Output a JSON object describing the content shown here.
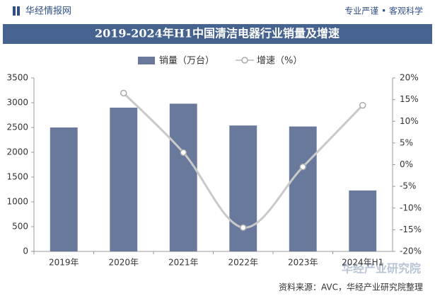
{
  "header": {
    "brand": "华经情报网",
    "slogan": "专业严谨 • 客观科学"
  },
  "chart_data": {
    "type": "bar",
    "title": "2019-2024年H1中国清洁电器行业销量及增速",
    "categories": [
      "2019年",
      "2020年",
      "2021年",
      "2022年",
      "2023年",
      "2024年H1"
    ],
    "series": [
      {
        "name": "销量（万台）",
        "type": "bar",
        "color": "#68799b",
        "values": [
          2500,
          2900,
          2980,
          2540,
          2520,
          1230
        ]
      },
      {
        "name": "增速（%）",
        "type": "line",
        "axis": "y2",
        "color": "#c9c9c9",
        "values": [
          null,
          16.5,
          2.8,
          -14.5,
          -0.5,
          13.7
        ]
      }
    ],
    "ylim": [
      0,
      3500
    ],
    "yticks": [
      0,
      500,
      1000,
      1500,
      2000,
      2500,
      3000,
      3500
    ],
    "y2lim": [
      -20,
      20
    ],
    "y2ticks": [
      {
        "value": -20,
        "label": "-20%"
      },
      {
        "value": -15,
        "label": "-15%"
      },
      {
        "value": -10,
        "label": "-10%"
      },
      {
        "value": -5,
        "label": "-5%"
      },
      {
        "value": 0,
        "label": "0%"
      },
      {
        "value": 5,
        "label": "5%"
      },
      {
        "value": 10,
        "label": "10%"
      },
      {
        "value": 15,
        "label": "15%"
      },
      {
        "value": 20,
        "label": "20%"
      }
    ]
  },
  "footer": {
    "source": "资料来源：AVC，华经产业研究院整理",
    "brand": "华经产业研究院"
  }
}
